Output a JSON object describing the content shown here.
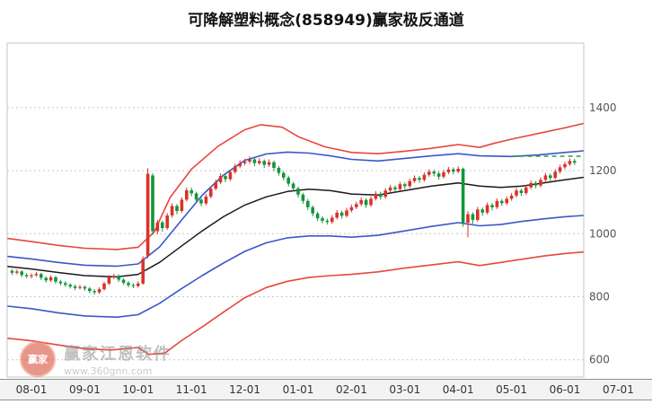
{
  "title": "可降解塑料概念(858949)赢家极反通道",
  "watermark": {
    "brand": "赢家江恩软件",
    "url": "www.360gnn.com",
    "logo_text": "赢家"
  },
  "chart_data": {
    "type": "candlestick",
    "title": "可降解塑料概念(858949)赢家极反通道",
    "x_tick_labels": [
      "08-01",
      "09-01",
      "10-01",
      "11-01",
      "12-01",
      "01-01",
      "02-01",
      "03-01",
      "04-01",
      "05-01",
      "06-01",
      "07-01"
    ],
    "y_tick_values": [
      600,
      800,
      1000,
      1200,
      1400
    ],
    "ylim": [
      545,
      1605
    ],
    "grid": "horizontal-dotted",
    "legend": "none",
    "colors": {
      "up_candle": "#d8332a",
      "down_candle": "#12953c",
      "outer_band": "#e8473d",
      "inner_band": "#3a57c9",
      "mid_line": "#1a1a1a",
      "level_line": "#2f9e44",
      "grid_line": "#c8c8c8",
      "axis_text": "#555555",
      "plot_border": "#c4c4c4"
    },
    "candles_start_month": -0.3636,
    "candles_months_per_index": 0.090909,
    "candles": [
      [
        882,
        888,
        869,
        876
      ],
      [
        876,
        886,
        871,
        880
      ],
      [
        880,
        884,
        862,
        869
      ],
      [
        869,
        875,
        859,
        865
      ],
      [
        865,
        874,
        858,
        868
      ],
      [
        868,
        879,
        863,
        872
      ],
      [
        872,
        876,
        853,
        860
      ],
      [
        860,
        865,
        845,
        852
      ],
      [
        852,
        868,
        847,
        862
      ],
      [
        862,
        866,
        841,
        848
      ],
      [
        848,
        854,
        836,
        843
      ],
      [
        843,
        849,
        831,
        838
      ],
      [
        838,
        843,
        826,
        833
      ],
      [
        833,
        839,
        821,
        828
      ],
      [
        828,
        838,
        823,
        831
      ],
      [
        831,
        836,
        819,
        826
      ],
      [
        826,
        831,
        811,
        818
      ],
      [
        818,
        824,
        807,
        814
      ],
      [
        814,
        830,
        809,
        824
      ],
      [
        824,
        848,
        819,
        842
      ],
      [
        842,
        868,
        837,
        862
      ],
      [
        862,
        873,
        856,
        866
      ],
      [
        866,
        871,
        847,
        854
      ],
      [
        854,
        859,
        837,
        844
      ],
      [
        844,
        850,
        830,
        837
      ],
      [
        837,
        843,
        827,
        834
      ],
      [
        834,
        849,
        829,
        842
      ],
      [
        842,
        928,
        838,
        920
      ],
      [
        930,
        1208,
        922,
        1190
      ],
      [
        1185,
        1192,
        996,
        1008
      ],
      [
        1008,
        1044,
        999,
        1036
      ],
      [
        1036,
        1042,
        1006,
        1018
      ],
      [
        1018,
        1066,
        1012,
        1058
      ],
      [
        1058,
        1096,
        1051,
        1088
      ],
      [
        1088,
        1094,
        1062,
        1072
      ],
      [
        1072,
        1116,
        1066,
        1108
      ],
      [
        1108,
        1147,
        1102,
        1138
      ],
      [
        1138,
        1146,
        1119,
        1128
      ],
      [
        1128,
        1133,
        1099,
        1108
      ],
      [
        1108,
        1114,
        1087,
        1096
      ],
      [
        1096,
        1126,
        1090,
        1118
      ],
      [
        1118,
        1151,
        1112,
        1143
      ],
      [
        1143,
        1171,
        1137,
        1163
      ],
      [
        1163,
        1192,
        1157,
        1183
      ],
      [
        1183,
        1189,
        1163,
        1173
      ],
      [
        1173,
        1204,
        1167,
        1196
      ],
      [
        1196,
        1222,
        1190,
        1214
      ],
      [
        1214,
        1233,
        1208,
        1224
      ],
      [
        1224,
        1238,
        1217,
        1229
      ],
      [
        1229,
        1245,
        1222,
        1236
      ],
      [
        1236,
        1241,
        1214,
        1224
      ],
      [
        1224,
        1240,
        1218,
        1231
      ],
      [
        1231,
        1236,
        1209,
        1219
      ],
      [
        1219,
        1236,
        1212,
        1227
      ],
      [
        1227,
        1232,
        1199,
        1209
      ],
      [
        1209,
        1215,
        1184,
        1193
      ],
      [
        1193,
        1199,
        1169,
        1178
      ],
      [
        1178,
        1184,
        1150,
        1159
      ],
      [
        1159,
        1165,
        1135,
        1144
      ],
      [
        1144,
        1150,
        1115,
        1124
      ],
      [
        1124,
        1130,
        1095,
        1104
      ],
      [
        1104,
        1110,
        1075,
        1084
      ],
      [
        1084,
        1090,
        1055,
        1064
      ],
      [
        1064,
        1070,
        1040,
        1049
      ],
      [
        1049,
        1056,
        1033,
        1041
      ],
      [
        1041,
        1048,
        1029,
        1037
      ],
      [
        1037,
        1059,
        1031,
        1051
      ],
      [
        1051,
        1075,
        1045,
        1067
      ],
      [
        1067,
        1073,
        1048,
        1057
      ],
      [
        1057,
        1082,
        1051,
        1074
      ],
      [
        1074,
        1092,
        1068,
        1084
      ],
      [
        1084,
        1102,
        1078,
        1094
      ],
      [
        1094,
        1115,
        1088,
        1107
      ],
      [
        1107,
        1113,
        1082,
        1091
      ],
      [
        1091,
        1119,
        1085,
        1111
      ],
      [
        1111,
        1135,
        1105,
        1127
      ],
      [
        1127,
        1133,
        1108,
        1117
      ],
      [
        1117,
        1145,
        1111,
        1137
      ],
      [
        1137,
        1155,
        1131,
        1147
      ],
      [
        1147,
        1153,
        1132,
        1141
      ],
      [
        1141,
        1165,
        1135,
        1157
      ],
      [
        1157,
        1163,
        1142,
        1151
      ],
      [
        1151,
        1175,
        1145,
        1167
      ],
      [
        1167,
        1185,
        1161,
        1177
      ],
      [
        1177,
        1183,
        1162,
        1171
      ],
      [
        1171,
        1195,
        1165,
        1187
      ],
      [
        1187,
        1205,
        1181,
        1197
      ],
      [
        1197,
        1203,
        1182,
        1191
      ],
      [
        1191,
        1197,
        1172,
        1181
      ],
      [
        1181,
        1203,
        1175,
        1195
      ],
      [
        1195,
        1212,
        1189,
        1204
      ],
      [
        1204,
        1210,
        1188,
        1197
      ],
      [
        1197,
        1214,
        1191,
        1206
      ],
      [
        1206,
        1210,
        1022,
        1035
      ],
      [
        1035,
        1072,
        988,
        1062
      ],
      [
        1062,
        1068,
        1032,
        1044
      ],
      [
        1044,
        1085,
        1038,
        1077
      ],
      [
        1077,
        1083,
        1057,
        1067
      ],
      [
        1067,
        1099,
        1061,
        1091
      ],
      [
        1091,
        1097,
        1074,
        1084
      ],
      [
        1084,
        1112,
        1078,
        1104
      ],
      [
        1104,
        1110,
        1088,
        1097
      ],
      [
        1097,
        1119,
        1091,
        1111
      ],
      [
        1111,
        1129,
        1105,
        1121
      ],
      [
        1121,
        1145,
        1115,
        1137
      ],
      [
        1137,
        1143,
        1120,
        1129
      ],
      [
        1129,
        1155,
        1123,
        1147
      ],
      [
        1147,
        1169,
        1141,
        1161
      ],
      [
        1161,
        1167,
        1144,
        1153
      ],
      [
        1153,
        1179,
        1147,
        1171
      ],
      [
        1171,
        1193,
        1165,
        1185
      ],
      [
        1185,
        1191,
        1168,
        1177
      ],
      [
        1177,
        1205,
        1171,
        1197
      ],
      [
        1197,
        1219,
        1191,
        1211
      ],
      [
        1211,
        1229,
        1205,
        1221
      ],
      [
        1221,
        1239,
        1215,
        1231
      ],
      [
        1231,
        1237,
        1218,
        1226
      ]
    ],
    "bands": {
      "upper_red": [
        [
          -0.45,
          985
        ],
        [
          0,
          975
        ],
        [
          0.5,
          963
        ],
        [
          1,
          954
        ],
        [
          1.6,
          950
        ],
        [
          2,
          957
        ],
        [
          2.3,
          1005
        ],
        [
          2.6,
          1115
        ],
        [
          3,
          1205
        ],
        [
          3.5,
          1278
        ],
        [
          4,
          1330
        ],
        [
          4.3,
          1346
        ],
        [
          4.7,
          1338
        ],
        [
          5,
          1308
        ],
        [
          5.5,
          1276
        ],
        [
          6,
          1258
        ],
        [
          6.5,
          1254
        ],
        [
          7,
          1262
        ],
        [
          7.5,
          1271
        ],
        [
          8,
          1283
        ],
        [
          8.4,
          1274
        ],
        [
          8.7,
          1288
        ],
        [
          9,
          1300
        ],
        [
          9.5,
          1318
        ],
        [
          10,
          1336
        ],
        [
          10.35,
          1350
        ]
      ],
      "upper_blue": [
        [
          -0.45,
          928
        ],
        [
          0,
          920
        ],
        [
          0.5,
          909
        ],
        [
          1,
          900
        ],
        [
          1.6,
          897
        ],
        [
          2,
          904
        ],
        [
          2.4,
          958
        ],
        [
          2.8,
          1040
        ],
        [
          3.2,
          1122
        ],
        [
          3.6,
          1186
        ],
        [
          4,
          1233
        ],
        [
          4.4,
          1253
        ],
        [
          4.8,
          1259
        ],
        [
          5.2,
          1256
        ],
        [
          5.6,
          1247
        ],
        [
          6,
          1236
        ],
        [
          6.5,
          1231
        ],
        [
          7,
          1239
        ],
        [
          7.5,
          1247
        ],
        [
          8,
          1254
        ],
        [
          8.4,
          1247
        ],
        [
          9,
          1245
        ],
        [
          9.5,
          1250
        ],
        [
          10,
          1258
        ],
        [
          10.35,
          1263
        ]
      ],
      "mid_black": [
        [
          -0.45,
          896
        ],
        [
          0,
          888
        ],
        [
          0.5,
          877
        ],
        [
          1,
          867
        ],
        [
          1.6,
          863
        ],
        [
          2,
          871
        ],
        [
          2.4,
          909
        ],
        [
          2.8,
          959
        ],
        [
          3.2,
          1009
        ],
        [
          3.6,
          1054
        ],
        [
          4,
          1091
        ],
        [
          4.4,
          1117
        ],
        [
          4.8,
          1134
        ],
        [
          5.2,
          1141
        ],
        [
          5.6,
          1137
        ],
        [
          6,
          1126
        ],
        [
          6.5,
          1123
        ],
        [
          7,
          1137
        ],
        [
          7.5,
          1151
        ],
        [
          8,
          1161
        ],
        [
          8.4,
          1151
        ],
        [
          8.8,
          1147
        ],
        [
          9.2,
          1151
        ],
        [
          9.6,
          1161
        ],
        [
          10,
          1171
        ],
        [
          10.35,
          1179
        ]
      ],
      "lower_blue": [
        [
          -0.45,
          770
        ],
        [
          0,
          762
        ],
        [
          0.5,
          749
        ],
        [
          1,
          739
        ],
        [
          1.6,
          735
        ],
        [
          2,
          743
        ],
        [
          2.4,
          779
        ],
        [
          2.8,
          824
        ],
        [
          3.2,
          867
        ],
        [
          3.6,
          907
        ],
        [
          4,
          944
        ],
        [
          4.4,
          971
        ],
        [
          4.8,
          987
        ],
        [
          5.2,
          993
        ],
        [
          5.6,
          993
        ],
        [
          6,
          989
        ],
        [
          6.5,
          995
        ],
        [
          7,
          1009
        ],
        [
          7.5,
          1023
        ],
        [
          8,
          1035
        ],
        [
          8.4,
          1025
        ],
        [
          8.8,
          1029
        ],
        [
          9.2,
          1039
        ],
        [
          9.6,
          1047
        ],
        [
          10,
          1054
        ],
        [
          10.35,
          1058
        ]
      ],
      "lower_red": [
        [
          -0.45,
          668
        ],
        [
          0,
          660
        ],
        [
          0.5,
          647
        ],
        [
          1,
          635
        ],
        [
          1.5,
          631
        ],
        [
          2,
          639
        ],
        [
          2.2,
          617
        ],
        [
          2.5,
          621
        ],
        [
          2.8,
          659
        ],
        [
          3.2,
          704
        ],
        [
          3.6,
          751
        ],
        [
          4,
          797
        ],
        [
          4.4,
          829
        ],
        [
          4.8,
          849
        ],
        [
          5.2,
          861
        ],
        [
          5.6,
          867
        ],
        [
          6,
          871
        ],
        [
          6.5,
          879
        ],
        [
          7,
          891
        ],
        [
          7.5,
          901
        ],
        [
          8,
          911
        ],
        [
          8.4,
          899
        ],
        [
          8.8,
          909
        ],
        [
          9.2,
          919
        ],
        [
          9.6,
          929
        ],
        [
          10,
          937
        ],
        [
          10.35,
          942
        ]
      ]
    },
    "level_line": {
      "value": 1246,
      "from_month": 9.0,
      "to_month": 10.35,
      "style": "dashed"
    }
  }
}
